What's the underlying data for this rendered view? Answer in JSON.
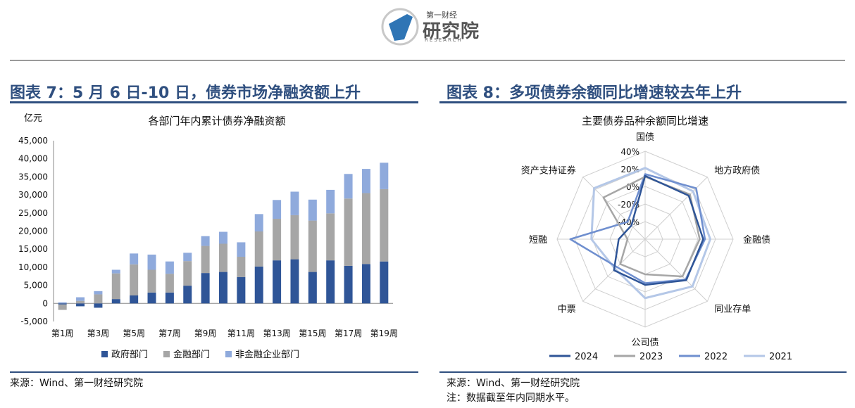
{
  "logo": {
    "small": "第一财经",
    "main": "研究院",
    "sub": "RESEARCH"
  },
  "left": {
    "figure_title": "图表 7：5 月 6 日-10 日，债券市场净融资额上升",
    "source": "来源：Wind、第一财经研究院"
  },
  "right": {
    "figure_title": "图表 8：多项债券余额同比增速较去年上升",
    "source": "来源：Wind、第一财经研究院",
    "note": "注：数据截至年内同期水平。"
  },
  "colors": {
    "title": "#2f4f7f",
    "gov": "#2f5597",
    "fin": "#a6a6a6",
    "nonfin": "#8faadc",
    "s2024": "#2f5597",
    "s2023": "#a6a6a6",
    "s2022": "#6f8fcf",
    "s2021": "#b4c7e7"
  },
  "chart_data": [
    {
      "type": "bar",
      "stacked": true,
      "title": "各部门年内累计债券净融资额",
      "ylabel": "亿元",
      "ylim": [
        -5000,
        45000
      ],
      "yticks": [
        45000,
        40000,
        35000,
        30000,
        25000,
        20000,
        15000,
        10000,
        5000,
        0,
        -5000
      ],
      "ytick_labels": [
        "45,000",
        "40,000",
        "35,000",
        "30,000",
        "25,000",
        "20,000",
        "15,000",
        "10,000",
        "5,000",
        "0",
        "-5,000"
      ],
      "categories": [
        "第1周",
        "第2周",
        "第3周",
        "第4周",
        "第5周",
        "第6周",
        "第7周",
        "第8周",
        "第9周",
        "第10周",
        "第11周",
        "第12周",
        "第13周",
        "第14周",
        "第15周",
        "第16周",
        "第17周",
        "第18周",
        "第19周"
      ],
      "xtick_labels": [
        "第1周",
        "第3周",
        "第5周",
        "第7周",
        "第9周",
        "第11周",
        "第13周",
        "第15周",
        "第17周",
        "第19周"
      ],
      "series": [
        {
          "name": "政府部门",
          "values": [
            -300,
            -800,
            -1200,
            1200,
            2200,
            3000,
            3000,
            4900,
            8400,
            8700,
            7300,
            10200,
            11900,
            12200,
            8700,
            11900,
            10400,
            10900,
            11600
          ]
        },
        {
          "name": "金融部门",
          "values": [
            -1500,
            700,
            2500,
            7100,
            8600,
            6300,
            5200,
            6800,
            7500,
            7800,
            5600,
            9700,
            11500,
            12200,
            14200,
            13000,
            18600,
            19600,
            20000
          ]
        },
        {
          "name": "非金融企业部门",
          "values": [
            300,
            1000,
            900,
            1000,
            3000,
            4200,
            3400,
            2300,
            2700,
            3300,
            4000,
            4800,
            5200,
            6500,
            5800,
            6500,
            6800,
            6700,
            7300
          ]
        }
      ],
      "legend": "bottom"
    },
    {
      "type": "radar",
      "title": "主要债券品种余额同比增速",
      "axes": [
        "国债",
        "地方政府债",
        "金融债",
        "同业存单",
        "公司债",
        "中票",
        "短融",
        "资产支持证券"
      ],
      "rlim": [
        -60,
        40
      ],
      "rticks": [
        40,
        20,
        0,
        -20,
        -40
      ],
      "rtick_labels": [
        "40%",
        "20%",
        "0%",
        "-20%",
        "-40%"
      ],
      "series": [
        {
          "name": "2024",
          "values": [
            12,
            10,
            6,
            6,
            -8,
            -10,
            -30,
            -38
          ]
        },
        {
          "name": "2023",
          "values": [
            11,
            12,
            2,
            0,
            -20,
            -20,
            -40,
            7
          ]
        },
        {
          "name": "2022",
          "values": [
            14,
            22,
            8,
            5,
            -10,
            -15,
            25,
            -32
          ]
        },
        {
          "name": "2021",
          "values": [
            21,
            17,
            14,
            16,
            7,
            -12,
            1,
            22
          ]
        }
      ],
      "legend": "bottom"
    }
  ]
}
